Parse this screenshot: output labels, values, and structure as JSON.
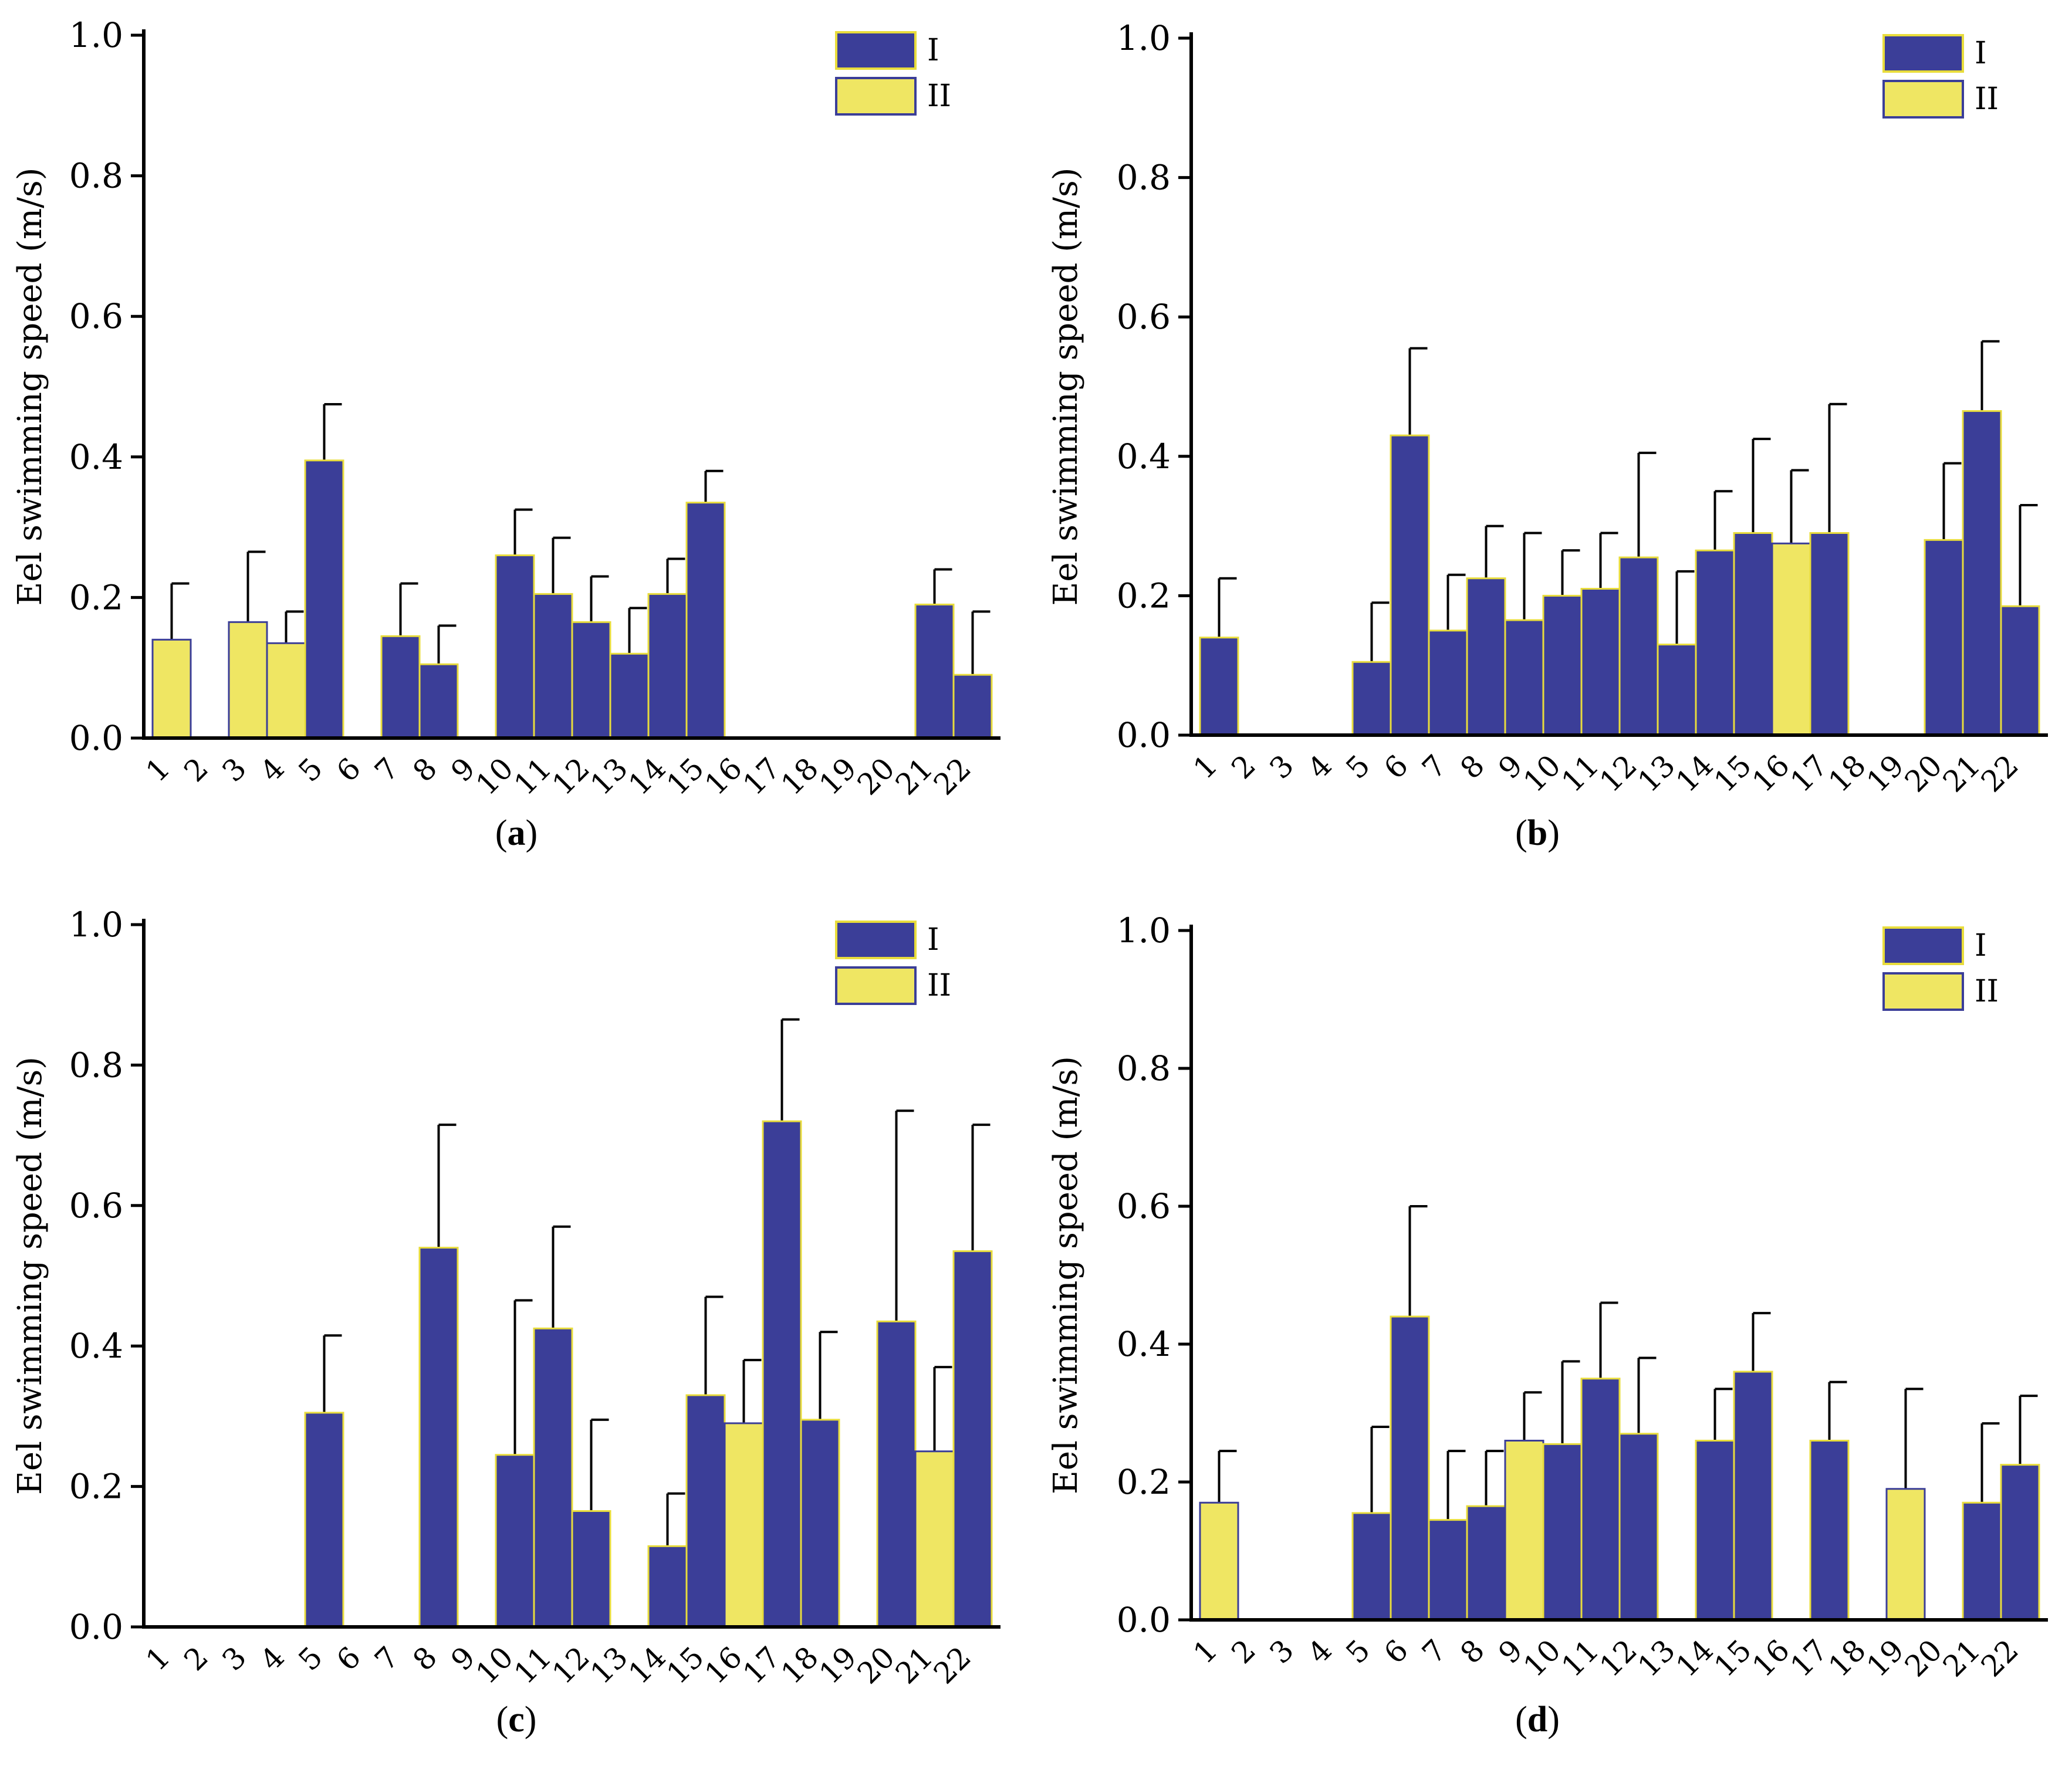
{
  "colors": {
    "I": "#3b3e98",
    "II": "#efe663",
    "I_edge": "#e8dc3c",
    "II_edge": "#3b3e98",
    "axis": "#000000"
  },
  "chart_data": [
    {
      "type": "bar",
      "panel": "a",
      "caption": "a",
      "ylabel": "Eel swimming speed (m/s)",
      "ylim": [
        0,
        1.0
      ],
      "yticks": [
        "0.0",
        "0.2",
        "0.4",
        "0.6",
        "0.8",
        "1.0"
      ],
      "categories": [
        "1",
        "2",
        "3",
        "4",
        "5",
        "6",
        "7",
        "8",
        "9",
        "10",
        "11",
        "12",
        "13",
        "14",
        "15",
        "16",
        "17",
        "18",
        "19",
        "20",
        "21",
        "22"
      ],
      "legend": [
        "I",
        "II"
      ],
      "bars": [
        {
          "x": "1",
          "group": "II",
          "value": 0.14,
          "err": 0.08
        },
        {
          "x": "3",
          "group": "II",
          "value": 0.165,
          "err": 0.1
        },
        {
          "x": "4",
          "group": "II",
          "value": 0.135,
          "err": 0.045
        },
        {
          "x": "5",
          "group": "I",
          "value": 0.395,
          "err": 0.08
        },
        {
          "x": "7",
          "group": "I",
          "value": 0.145,
          "err": 0.075
        },
        {
          "x": "8",
          "group": "I",
          "value": 0.105,
          "err": 0.055
        },
        {
          "x": "10",
          "group": "I",
          "value": 0.26,
          "err": 0.065
        },
        {
          "x": "11",
          "group": "I",
          "value": 0.205,
          "err": 0.08
        },
        {
          "x": "12",
          "group": "I",
          "value": 0.165,
          "err": 0.065
        },
        {
          "x": "13",
          "group": "I",
          "value": 0.12,
          "err": 0.065
        },
        {
          "x": "14",
          "group": "I",
          "value": 0.205,
          "err": 0.05
        },
        {
          "x": "15",
          "group": "I",
          "value": 0.335,
          "err": 0.045
        },
        {
          "x": "21",
          "group": "I",
          "value": 0.19,
          "err": 0.05
        },
        {
          "x": "22",
          "group": "I",
          "value": 0.09,
          "err": 0.09
        }
      ]
    },
    {
      "type": "bar",
      "panel": "b",
      "caption": "b",
      "ylabel": "Eel swimming speed (m/s)",
      "ylim": [
        0,
        1.0
      ],
      "yticks": [
        "0.0",
        "0.2",
        "0.4",
        "0.6",
        "0.8",
        "1.0"
      ],
      "categories": [
        "1",
        "2",
        "3",
        "4",
        "5",
        "6",
        "7",
        "8",
        "9",
        "10",
        "11",
        "12",
        "13",
        "14",
        "15",
        "16",
        "17",
        "18",
        "19",
        "20",
        "21",
        "22"
      ],
      "legend": [
        "I",
        "II"
      ],
      "bars": [
        {
          "x": "1",
          "group": "I",
          "value": 0.14,
          "err": 0.085
        },
        {
          "x": "5",
          "group": "I",
          "value": 0.105,
          "err": 0.085
        },
        {
          "x": "6",
          "group": "I",
          "value": 0.43,
          "err": 0.125
        },
        {
          "x": "7",
          "group": "I",
          "value": 0.15,
          "err": 0.08
        },
        {
          "x": "8",
          "group": "I",
          "value": 0.225,
          "err": 0.075
        },
        {
          "x": "9",
          "group": "I",
          "value": 0.165,
          "err": 0.125
        },
        {
          "x": "10",
          "group": "I",
          "value": 0.2,
          "err": 0.065
        },
        {
          "x": "11",
          "group": "I",
          "value": 0.21,
          "err": 0.08
        },
        {
          "x": "12",
          "group": "I",
          "value": 0.255,
          "err": 0.15
        },
        {
          "x": "13",
          "group": "I",
          "value": 0.13,
          "err": 0.105
        },
        {
          "x": "14",
          "group": "I",
          "value": 0.265,
          "err": 0.085
        },
        {
          "x": "15",
          "group": "I",
          "value": 0.29,
          "err": 0.135
        },
        {
          "x": "16",
          "group": "II",
          "value": 0.275,
          "err": 0.105
        },
        {
          "x": "17",
          "group": "I",
          "value": 0.29,
          "err": 0.185
        },
        {
          "x": "20",
          "group": "I",
          "value": 0.28,
          "err": 0.11
        },
        {
          "x": "21",
          "group": "I",
          "value": 0.465,
          "err": 0.1
        },
        {
          "x": "22",
          "group": "I",
          "value": 0.185,
          "err": 0.145
        }
      ]
    },
    {
      "type": "bar",
      "panel": "c",
      "caption": "c",
      "ylabel": "Eel swimming speed (m/s)",
      "ylim": [
        0,
        1.0
      ],
      "yticks": [
        "0.0",
        "0.2",
        "0.4",
        "0.6",
        "0.8",
        "1.0"
      ],
      "categories": [
        "1",
        "2",
        "3",
        "4",
        "5",
        "6",
        "7",
        "8",
        "9",
        "10",
        "11",
        "12",
        "13",
        "14",
        "15",
        "16",
        "17",
        "18",
        "19",
        "20",
        "21",
        "22"
      ],
      "legend": [
        "I",
        "II"
      ],
      "bars": [
        {
          "x": "5",
          "group": "I",
          "value": 0.305,
          "err": 0.11
        },
        {
          "x": "8",
          "group": "I",
          "value": 0.54,
          "err": 0.175
        },
        {
          "x": "10",
          "group": "I",
          "value": 0.245,
          "err": 0.22
        },
        {
          "x": "11",
          "group": "I",
          "value": 0.425,
          "err": 0.145
        },
        {
          "x": "12",
          "group": "I",
          "value": 0.165,
          "err": 0.13
        },
        {
          "x": "14",
          "group": "I",
          "value": 0.115,
          "err": 0.075
        },
        {
          "x": "15",
          "group": "I",
          "value": 0.33,
          "err": 0.14
        },
        {
          "x": "16",
          "group": "II",
          "value": 0.29,
          "err": 0.09
        },
        {
          "x": "17",
          "group": "I",
          "value": 0.72,
          "err": 0.145
        },
        {
          "x": "18",
          "group": "I",
          "value": 0.295,
          "err": 0.125
        },
        {
          "x": "20",
          "group": "I",
          "value": 0.435,
          "err": 0.3
        },
        {
          "x": "21",
          "group": "II",
          "value": 0.25,
          "err": 0.12
        },
        {
          "x": "22",
          "group": "I",
          "value": 0.535,
          "err": 0.18
        }
      ]
    },
    {
      "type": "bar",
      "panel": "d",
      "caption": "d",
      "ylabel": "Eel swimming speed (m/s)",
      "ylim": [
        0,
        1.0
      ],
      "yticks": [
        "0.0",
        "0.2",
        "0.4",
        "0.6",
        "0.8",
        "1.0"
      ],
      "categories": [
        "1",
        "2",
        "3",
        "4",
        "5",
        "6",
        "7",
        "8",
        "9",
        "10",
        "11",
        "12",
        "13",
        "14",
        "15",
        "16",
        "17",
        "18",
        "19",
        "20",
        "21",
        "22"
      ],
      "legend": [
        "I",
        "II"
      ],
      "bars": [
        {
          "x": "1",
          "group": "II",
          "value": 0.17,
          "err": 0.075
        },
        {
          "x": "5",
          "group": "I",
          "value": 0.155,
          "err": 0.125
        },
        {
          "x": "6",
          "group": "I",
          "value": 0.44,
          "err": 0.16
        },
        {
          "x": "7",
          "group": "I",
          "value": 0.145,
          "err": 0.1
        },
        {
          "x": "8",
          "group": "I",
          "value": 0.165,
          "err": 0.08
        },
        {
          "x": "9",
          "group": "II",
          "value": 0.26,
          "err": 0.07
        },
        {
          "x": "10",
          "group": "I",
          "value": 0.255,
          "err": 0.12
        },
        {
          "x": "11",
          "group": "I",
          "value": 0.35,
          "err": 0.11
        },
        {
          "x": "12",
          "group": "I",
          "value": 0.27,
          "err": 0.11
        },
        {
          "x": "14",
          "group": "I",
          "value": 0.26,
          "err": 0.075
        },
        {
          "x": "15",
          "group": "I",
          "value": 0.36,
          "err": 0.085
        },
        {
          "x": "17",
          "group": "I",
          "value": 0.26,
          "err": 0.085
        },
        {
          "x": "19",
          "group": "II",
          "value": 0.19,
          "err": 0.145
        },
        {
          "x": "21",
          "group": "I",
          "value": 0.17,
          "err": 0.115
        },
        {
          "x": "22",
          "group": "I",
          "value": 0.225,
          "err": 0.1
        }
      ]
    }
  ]
}
